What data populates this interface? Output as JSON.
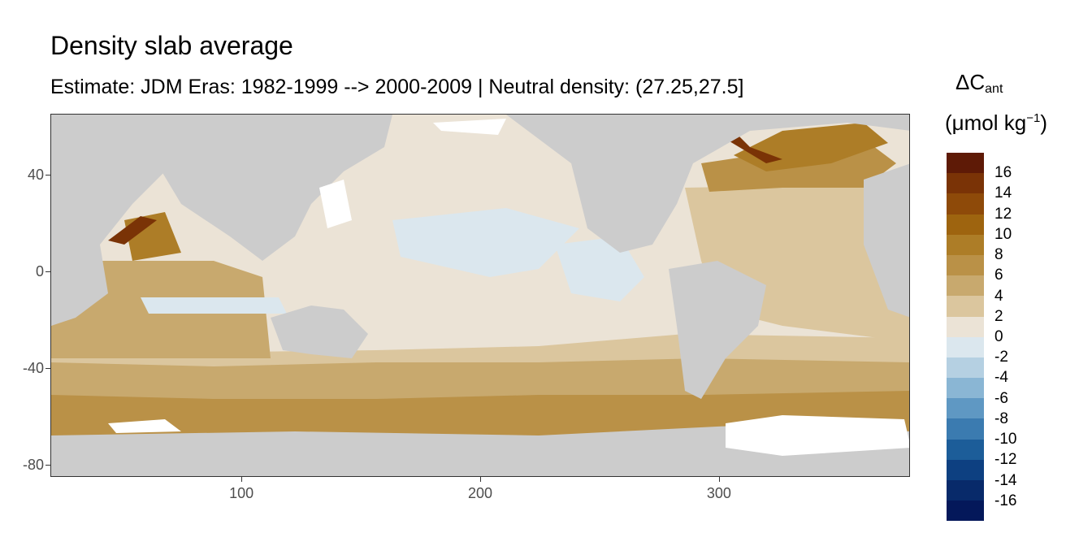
{
  "title": "Density slab average",
  "subtitle": "Estimate: JDM Eras: 1982-1999 --> 2000-2009 | Neutral density: (27.25,27.5]",
  "axes": {
    "x_ticks": [
      "100",
      "200",
      "300"
    ],
    "y_ticks": [
      "40",
      "0",
      "-40",
      "-80"
    ],
    "x_range": [
      20,
      380
    ],
    "y_range": [
      -85,
      65
    ]
  },
  "legend": {
    "title_main": "ΔC",
    "title_sub": "ant",
    "unit_prefix": "(μmol kg",
    "unit_exp": "−1",
    "unit_suffix": ")",
    "labels": [
      "16",
      "14",
      "12",
      "10",
      "8",
      "6",
      "4",
      "2",
      "0",
      "-2",
      "-4",
      "-6",
      "-8",
      "-10",
      "-12",
      "-14",
      "-16"
    ],
    "colors": [
      "#5e1a06",
      "#7a3306",
      "#8e4a09",
      "#9e640f",
      "#ad7d27",
      "#ba9147",
      "#c8a96e",
      "#dbc69e",
      "#ebe3d6",
      "#dbe7ee",
      "#b5d0e2",
      "#8ab6d4",
      "#5f98c3",
      "#3b7bb0",
      "#1c5d99",
      "#0d4081",
      "#082a6a",
      "#04185a"
    ]
  },
  "map_colors": {
    "land": "#cccccc",
    "missing": "#ffffff",
    "ocean_0_2": "#ebe3d6",
    "ocean_neg": "#dbe7ee",
    "ocean_2_4": "#dbc69e",
    "ocean_4_6": "#c8a96e",
    "ocean_6_8": "#ba9147",
    "ocean_8_10": "#ad7d27",
    "ocean_high": "#8e4a09"
  }
}
